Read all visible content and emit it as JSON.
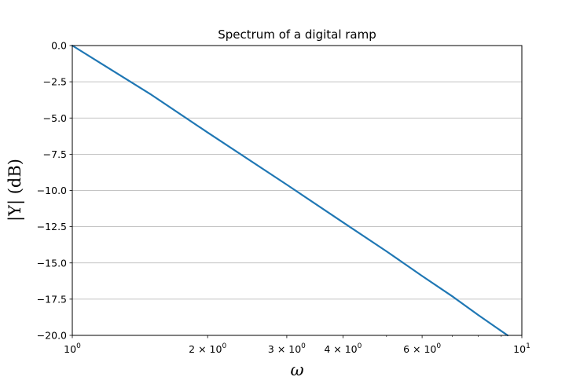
{
  "chart_data": {
    "type": "line",
    "title": "Spectrum of a digital ramp",
    "xlabel": "ω",
    "ylabel": "|Y| (dB)",
    "xscale": "log",
    "xlim": [
      1,
      10
    ],
    "ylim": [
      -20,
      0
    ],
    "grid": "horizontal",
    "x_ticks": [
      {
        "value": 1,
        "base": "10",
        "exp": "0"
      },
      {
        "value": 2,
        "base": "2 × 10",
        "exp": "0"
      },
      {
        "value": 3,
        "base": "3 × 10",
        "exp": "0"
      },
      {
        "value": 4,
        "base": "4 × 10",
        "exp": "0"
      },
      {
        "value": 6,
        "base": "6 × 10",
        "exp": "0"
      },
      {
        "value": 10,
        "base": "10",
        "exp": "1"
      }
    ],
    "x_minor_ticks": [
      5,
      7,
      8,
      9
    ],
    "y_ticks": [
      0.0,
      -2.5,
      -5.0,
      -7.5,
      -10.0,
      -12.5,
      -15.0,
      -17.5,
      -20.0
    ],
    "y_tick_labels": [
      "0.0",
      "−2.5",
      "−5.0",
      "−7.5",
      "−10.0",
      "−12.5",
      "−15.0",
      "−17.5",
      "−20.0"
    ],
    "series": [
      {
        "color": "#1f77b4",
        "x": [
          1.0,
          1.5,
          2.0,
          3.0,
          4.0,
          5.0,
          6.0,
          7.0,
          8.0,
          9.0,
          9.3
        ],
        "y": [
          0.0,
          -3.4,
          -6.0,
          -9.6,
          -12.2,
          -14.2,
          -15.9,
          -17.3,
          -18.6,
          -19.7,
          -20.0
        ]
      }
    ]
  }
}
